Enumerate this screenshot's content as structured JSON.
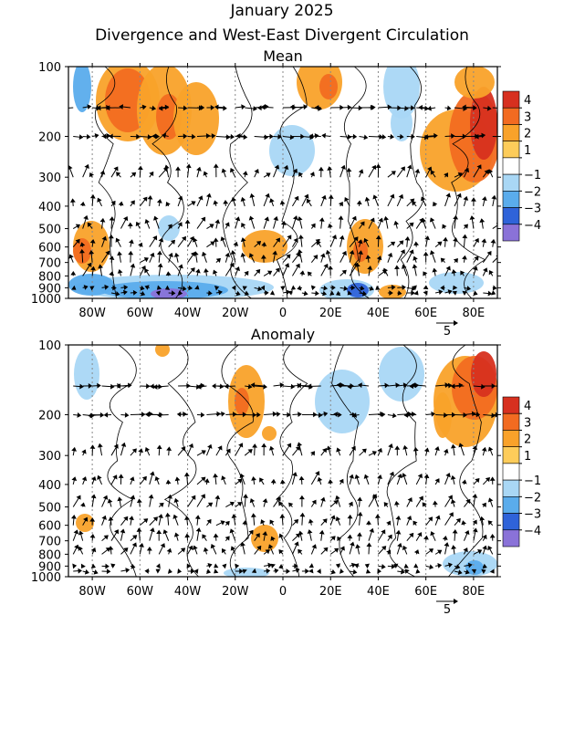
{
  "header": {
    "title": "January 2025",
    "subtitle": "Divergence and West-East Divergent Circulation"
  },
  "colors": {
    "pos4": "#d7301f",
    "pos3": "#f26b21",
    "pos2": "#f9a22a",
    "pos1": "#fdcc5a",
    "neg1": "#a9d7f5",
    "neg2": "#5aacec",
    "neg3": "#2f63d9",
    "neg4": "#8a72d8"
  },
  "chart_data": [
    {
      "type": "heatmap",
      "title": "Mean",
      "x_ticks": [
        "80W",
        "60W",
        "40W",
        "20W",
        "0",
        "20E",
        "40E",
        "60E",
        "80E"
      ],
      "x_range": [
        -90,
        90
      ],
      "y_ticks": [
        "100",
        "200",
        "300",
        "400",
        "500",
        "600",
        "700",
        "800",
        "900",
        "1000"
      ],
      "y_scale": "log",
      "y_range": [
        1000,
        100
      ],
      "colorbar": {
        "levels": [
          4,
          3,
          2,
          1,
          -1,
          -2,
          -3,
          -4
        ],
        "labels": [
          "4",
          "3",
          "2",
          "1",
          "−1",
          "−2",
          "−3",
          "−4"
        ]
      },
      "vector_reference": "5",
      "overlays": "filled divergence contours, black streamfunction contours, wind vectors"
    },
    {
      "type": "heatmap",
      "title": "Anomaly",
      "x_ticks": [
        "80W",
        "60W",
        "40W",
        "20W",
        "0",
        "20E",
        "40E",
        "60E",
        "80E"
      ],
      "x_range": [
        -90,
        90
      ],
      "y_ticks": [
        "100",
        "200",
        "300",
        "400",
        "500",
        "600",
        "700",
        "800",
        "900",
        "1000"
      ],
      "y_scale": "log",
      "y_range": [
        1000,
        100
      ],
      "colorbar": {
        "levels": [
          4,
          3,
          2,
          1,
          -1,
          -2,
          -3,
          -4
        ],
        "labels": [
          "4",
          "3",
          "2",
          "1",
          "−1",
          "−2",
          "−3",
          "−4"
        ]
      },
      "vector_reference": "5",
      "overlays": "filled divergence contours, black streamfunction contours, wind vectors"
    }
  ]
}
